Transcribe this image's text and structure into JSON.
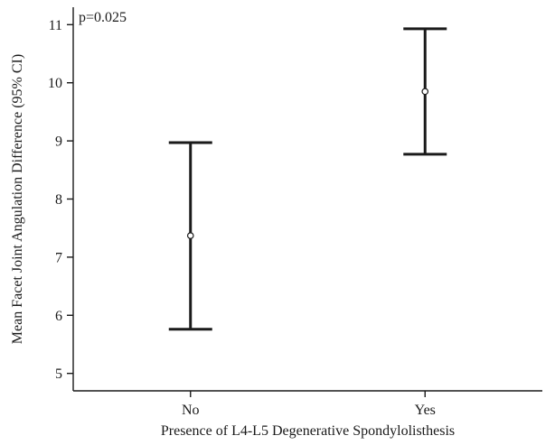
{
  "chart_data": {
    "type": "errorbar",
    "categories": [
      "No",
      "Yes"
    ],
    "series": [
      {
        "means": [
          7.37,
          9.85
        ],
        "ci_lower": [
          5.76,
          8.77
        ],
        "ci_upper": [
          8.97,
          10.93
        ]
      }
    ],
    "xlabel": "Presence of L4-L5 Degenerative Spondylolisthesis",
    "ylabel": "Mean Facet Joint Angulation Difference (95% CI)",
    "annotation": "p=0.025",
    "ylim": [
      4.7,
      11.3
    ],
    "yticks": [
      5,
      6,
      7,
      8,
      9,
      10,
      11
    ],
    "grid": false,
    "colors": {
      "ink": "#1a1a1a",
      "background": "#ffffff"
    }
  }
}
